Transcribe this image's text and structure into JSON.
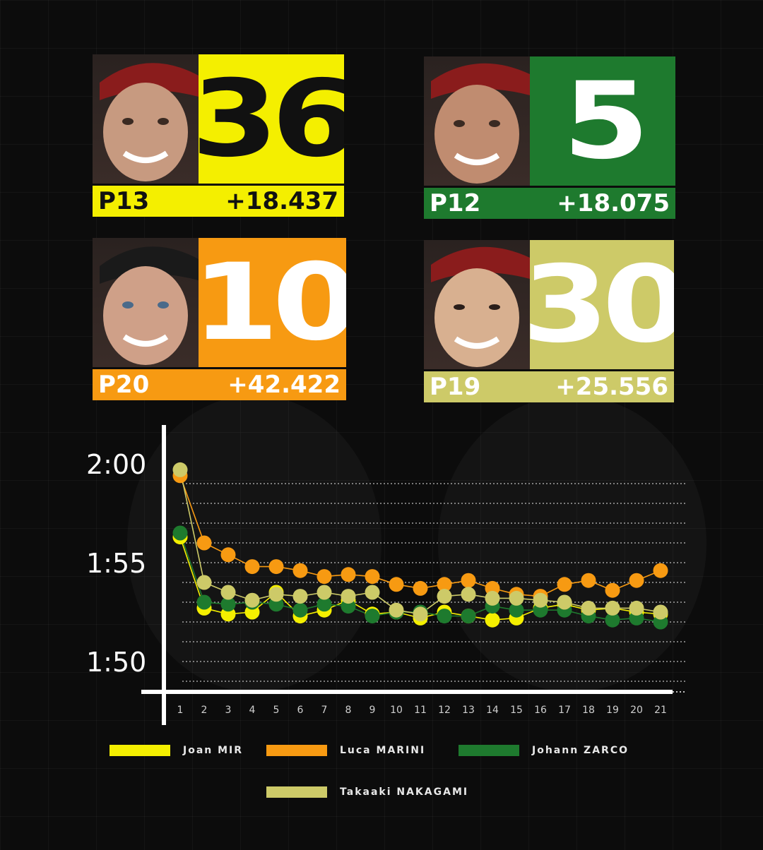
{
  "riders": [
    {
      "name": "Joan MIR",
      "number": "36",
      "position": "P13",
      "gap": "+18.437",
      "color": "#f4ef00",
      "number_color": "#111111",
      "bar_text_color": "#111111"
    },
    {
      "name": "Johann ZARCO",
      "number": "5",
      "position": "P12",
      "gap": "+18.075",
      "color": "#1e7a2e",
      "number_color": "#ffffff",
      "bar_text_color": "#ffffff"
    },
    {
      "name": "Luca MARINI",
      "number": "10",
      "position": "P20",
      "gap": "+42.422",
      "color": "#f79a12",
      "number_color": "#ffffff",
      "bar_text_color": "#ffffff"
    },
    {
      "name": "Takaaki NAKAGAMI",
      "number": "30",
      "position": "P19",
      "gap": "+25.556",
      "color": "#cdca68",
      "number_color": "#ffffff",
      "bar_text_color": "#ffffff"
    }
  ],
  "chart_data": {
    "type": "line",
    "x": [
      1,
      2,
      3,
      4,
      5,
      6,
      7,
      8,
      9,
      10,
      11,
      12,
      13,
      14,
      15,
      16,
      17,
      18,
      19,
      20,
      21
    ],
    "y_tick_labels": [
      "2:00",
      "1:55",
      "1:50"
    ],
    "y_ticks_seconds": [
      120,
      115,
      110
    ],
    "ylim": [
      108.75,
      121.25
    ],
    "grid": "dotted horizontal",
    "legend_position": "bottom",
    "series": [
      {
        "name": "Joan MIR",
        "color": "#f4ef00",
        "values": [
          116.3,
          112.7,
          112.4,
          112.5,
          113.5,
          112.3,
          112.6,
          113.1,
          112.4,
          112.5,
          112.2,
          112.5,
          112.3,
          112.1,
          112.2,
          112.7,
          112.9,
          112.6,
          112.7,
          112.5,
          112.4
        ]
      },
      {
        "name": "Luca MARINI",
        "color": "#f79a12",
        "values": [
          119.4,
          116.0,
          115.4,
          114.8,
          114.8,
          114.6,
          114.3,
          114.4,
          114.3,
          113.9,
          113.7,
          113.9,
          114.1,
          113.7,
          113.4,
          113.3,
          113.9,
          114.1,
          113.6,
          114.1,
          114.6
        ]
      },
      {
        "name": "Johann ZARCO",
        "color": "#1e7a2e",
        "values": [
          116.5,
          113.0,
          112.9,
          113.0,
          112.9,
          112.6,
          112.9,
          112.8,
          112.3,
          112.5,
          112.5,
          112.3,
          112.3,
          112.8,
          112.6,
          112.6,
          112.6,
          112.3,
          112.1,
          112.2,
          112.0
        ]
      },
      {
        "name": "Takaaki NAKAGAMI",
        "color": "#cdca68",
        "values": [
          119.7,
          114.0,
          113.5,
          113.1,
          113.4,
          113.3,
          113.5,
          113.3,
          113.5,
          112.6,
          112.4,
          113.3,
          113.4,
          113.2,
          113.2,
          113.1,
          113.0,
          112.7,
          112.7,
          112.7,
          112.5
        ]
      }
    ]
  }
}
